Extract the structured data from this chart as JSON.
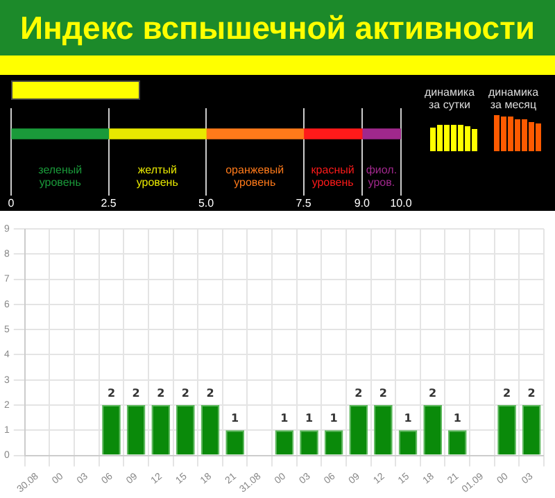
{
  "chart_data": [
    {
      "type": "bar",
      "title": "Индекс вспышечной активности",
      "orientation": "horizontal",
      "stacked": true,
      "categories": [
        null
      ],
      "xlim": [
        0,
        10
      ],
      "xticks": [
        0,
        2.5,
        {
          "value": 5,
          "label": "5.0"
        },
        7.5,
        {
          "value": 9,
          "label": "9.0"
        },
        {
          "value": 10,
          "label": "10.0"
        }
      ],
      "tick_labels": "x",
      "grid": "x",
      "series": [
        {
          "name": "зеленый уровень",
          "color": "#1a9a3a",
          "values": [
            2.5
          ]
        },
        {
          "name": "желтый уровень",
          "color": "#e8e800",
          "values": [
            2.5
          ]
        },
        {
          "name": "оранжевый уровень",
          "color": "#ff7a1a",
          "values": [
            2.5
          ]
        },
        {
          "name": "красный уровень",
          "color": "#ff1a1a",
          "values": [
            1.5
          ]
        },
        {
          "name": "фиол. уров.",
          "color": "#a0288c",
          "values": [
            1
          ]
        }
      ],
      "annotations": [
        "динамика за сутки",
        "динамика за месяц"
      ]
    },
    {
      "type": "bar",
      "categories": [
        "30.08",
        "00",
        "03",
        "06",
        "09",
        "12",
        "15",
        "18",
        "21",
        "31.08",
        "00",
        "03",
        "06",
        "09",
        "12",
        "15",
        "18",
        "21",
        "01.09",
        "00",
        "03"
      ],
      "values": [
        0,
        0,
        0,
        2,
        2,
        2,
        2,
        2,
        1,
        0,
        1,
        1,
        1,
        2,
        2,
        1,
        2,
        1,
        0,
        2,
        2
      ],
      "value_labels": [
        null,
        null,
        null,
        "2",
        "2",
        "2",
        "2",
        "2",
        "1",
        null,
        "1",
        "1",
        "1",
        "2",
        "2",
        "1",
        "2",
        "1",
        null,
        "2",
        "2"
      ],
      "color": "#0a8a0a",
      "ylim": [
        0,
        9
      ],
      "yticks": [
        0,
        1,
        2,
        3,
        4,
        5,
        6,
        7,
        8,
        9
      ],
      "grid": true
    }
  ]
}
